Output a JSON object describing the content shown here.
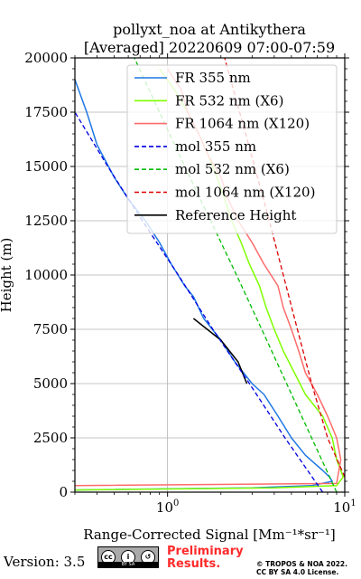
{
  "chart_data": {
    "type": "line",
    "title": "pollyxt_noa at Antikythera",
    "subtitle": "[Averaged] 20220609 07:00-07:59",
    "xlabel": "Range-Corrected Signal [Mm⁻¹*sr⁻¹]",
    "ylabel": "Height (m)",
    "xscale": "log",
    "xlim": [
      0.3,
      10
    ],
    "ylim": [
      0,
      20000
    ],
    "x_tick_labels": [
      "10^0",
      "10^1"
    ],
    "x_tick_label_parts": [
      {
        "base": "10",
        "exp": "0"
      },
      {
        "base": "10",
        "exp": "1"
      }
    ],
    "y_ticks": [
      0,
      2500,
      5000,
      7500,
      10000,
      12500,
      15000,
      17500,
      20000
    ],
    "y_tick_labels": [
      "0",
      "2500",
      "5000",
      "7500",
      "10000",
      "12500",
      "15000",
      "17500",
      "20000"
    ],
    "grid": true,
    "legend_position": "top-right",
    "series": [
      {
        "name": "FR 355 nm",
        "color": "#1f77e4",
        "style": "solid",
        "points": [
          [
            0.3,
            100
          ],
          [
            3.0,
            200
          ],
          [
            6.5,
            300
          ],
          [
            8.5,
            500
          ],
          [
            8.2,
            700
          ],
          [
            7.5,
            1000
          ],
          [
            6.0,
            1700
          ],
          [
            5.0,
            2500
          ],
          [
            4.2,
            3500
          ],
          [
            3.5,
            4500
          ],
          [
            3.0,
            5000
          ],
          [
            2.4,
            6000
          ],
          [
            2.0,
            7000
          ],
          [
            1.6,
            8000
          ],
          [
            1.4,
            9000
          ],
          [
            1.25,
            9500
          ],
          [
            1.05,
            10500
          ],
          [
            0.9,
            11500
          ],
          [
            0.75,
            12500
          ],
          [
            0.6,
            13500
          ],
          [
            0.5,
            14500
          ],
          [
            0.4,
            16000
          ],
          [
            0.35,
            17500
          ],
          [
            0.3,
            19000
          ]
        ]
      },
      {
        "name": "FR 532 nm (X6)",
        "color": "#7fff00",
        "style": "solid",
        "points": [
          [
            0.3,
            100
          ],
          [
            4.0,
            200
          ],
          [
            9.0,
            300
          ],
          [
            9.8,
            700
          ],
          [
            9.0,
            1500
          ],
          [
            8.5,
            2500
          ],
          [
            7.5,
            3500
          ],
          [
            6.0,
            4500
          ],
          [
            5.2,
            5500
          ],
          [
            4.5,
            6500
          ],
          [
            4.0,
            7500
          ],
          [
            3.6,
            8500
          ],
          [
            3.3,
            9500
          ],
          [
            2.9,
            10500
          ],
          [
            2.6,
            11500
          ],
          [
            2.3,
            12500
          ],
          [
            2.1,
            13500
          ],
          [
            1.9,
            14500
          ],
          [
            1.7,
            15500
          ],
          [
            1.5,
            16500
          ],
          [
            1.3,
            17500
          ],
          [
            1.1,
            18500
          ],
          [
            0.9,
            19500
          ]
        ]
      },
      {
        "name": "FR 1064 nm (X120)",
        "color": "#ff6b6b",
        "style": "solid",
        "points": [
          [
            0.3,
            300
          ],
          [
            9.0,
            400
          ],
          [
            9.5,
            1500
          ],
          [
            9.0,
            2500
          ],
          [
            8.0,
            3500
          ],
          [
            7.0,
            4500
          ],
          [
            6.0,
            5500
          ],
          [
            5.5,
            6500
          ],
          [
            5.0,
            7500
          ],
          [
            4.5,
            8500
          ],
          [
            4.2,
            9500
          ],
          [
            3.5,
            10500
          ],
          [
            3.0,
            11500
          ],
          [
            2.5,
            12500
          ],
          [
            2.2,
            13500
          ],
          [
            2.0,
            14500
          ],
          [
            1.7,
            15500
          ],
          [
            1.5,
            16500
          ],
          [
            1.3,
            17500
          ],
          [
            1.2,
            18500
          ],
          [
            1.0,
            19500
          ]
        ]
      },
      {
        "name": "mol 355 nm",
        "color": "#0000e0",
        "style": "dashed",
        "points": [
          [
            7.5,
            0
          ],
          [
            4.6,
            2500
          ],
          [
            2.9,
            5000
          ],
          [
            1.8,
            7500
          ],
          [
            1.15,
            10000
          ],
          [
            0.72,
            12500
          ],
          [
            0.46,
            15000
          ],
          [
            0.3,
            17500
          ]
        ]
      },
      {
        "name": "mol 532 nm (X6)",
        "color": "#00bb00",
        "style": "dashed",
        "points": [
          [
            9.0,
            0
          ],
          [
            6.5,
            2500
          ],
          [
            4.7,
            5000
          ],
          [
            3.4,
            7500
          ],
          [
            2.45,
            10000
          ],
          [
            1.75,
            12500
          ],
          [
            1.25,
            15000
          ],
          [
            0.9,
            17500
          ],
          [
            0.65,
            20000
          ]
        ]
      },
      {
        "name": "mol 1064 nm (X120)",
        "color": "#dd0000",
        "style": "dashed",
        "points": [
          [
            10.0,
            700
          ],
          [
            8.0,
            2500
          ],
          [
            6.5,
            5000
          ],
          [
            5.4,
            7500
          ],
          [
            4.5,
            10000
          ],
          [
            3.75,
            12500
          ],
          [
            3.1,
            15000
          ],
          [
            2.55,
            17500
          ],
          [
            2.1,
            20000
          ]
        ]
      },
      {
        "name": "Reference Height",
        "color": "#000000",
        "style": "solid",
        "points": [
          [
            1.4,
            8000
          ],
          [
            2.0,
            7000
          ],
          [
            2.5,
            6000
          ],
          [
            2.8,
            5000
          ]
        ]
      }
    ]
  },
  "footer": {
    "version": "Version: 3.5",
    "license_badge_text": "BY SA",
    "preliminary": "Preliminary\nResults.",
    "copyright": "© TROPOS & NOA 2022.\nCC BY SA 4.0 License."
  }
}
